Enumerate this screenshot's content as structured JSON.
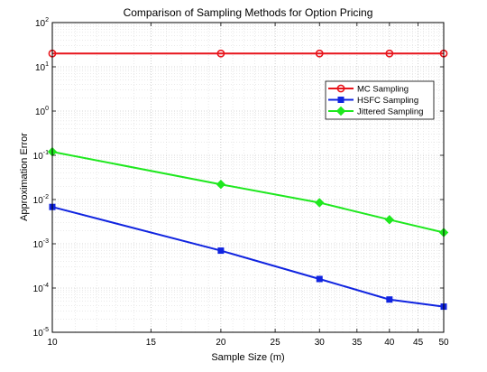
{
  "chart_data": {
    "type": "line",
    "title": "Comparison of Sampling Methods for Option Pricing",
    "xlabel": "Sample Size (m)",
    "ylabel": "Approximation Error",
    "xlim": [
      10,
      50
    ],
    "ylim": [
      1e-05,
      100
    ],
    "xscale": "log",
    "yscale": "log",
    "grid": true,
    "legend_position": "top-right",
    "xticks": [
      10,
      15,
      20,
      25,
      30,
      35,
      40,
      45,
      50
    ],
    "yticks": [
      {
        "value": 100,
        "base": "10",
        "exp": "2"
      },
      {
        "value": 10,
        "base": "10",
        "exp": "1"
      },
      {
        "value": 1,
        "base": "10",
        "exp": "0"
      },
      {
        "value": 0.1,
        "base": "10",
        "exp": "-1"
      },
      {
        "value": 0.01,
        "base": "10",
        "exp": "-2"
      },
      {
        "value": 0.001,
        "base": "10",
        "exp": "-3"
      },
      {
        "value": 0.0001,
        "base": "10",
        "exp": "-4"
      },
      {
        "value": 1e-05,
        "base": "10",
        "exp": "-5"
      }
    ],
    "x": [
      10,
      20,
      30,
      40,
      50
    ],
    "series": [
      {
        "name": "MC Sampling",
        "color": "#e8141b",
        "marker": "circle",
        "values": [
          20,
          20,
          20,
          20,
          20
        ]
      },
      {
        "name": "HSFC Sampling",
        "color": "#1024e0",
        "marker": "square",
        "values": [
          0.0068,
          0.0007,
          0.00016,
          5.5e-05,
          3.8e-05
        ]
      },
      {
        "name": "Jittered Sampling",
        "color": "#1ee81e",
        "marker": "diamond",
        "values": [
          0.12,
          0.022,
          0.0085,
          0.0035,
          0.0018
        ]
      }
    ]
  }
}
